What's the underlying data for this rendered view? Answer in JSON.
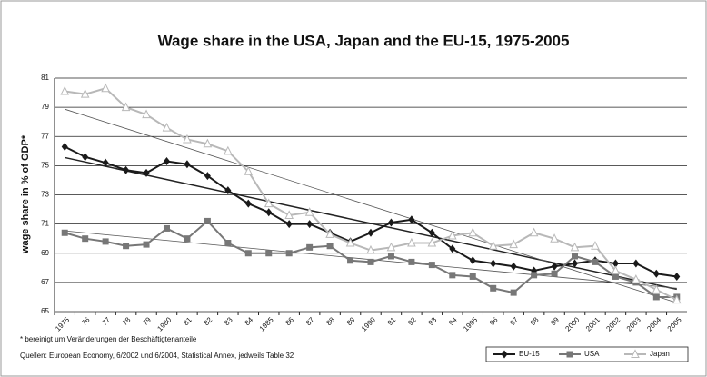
{
  "chart_data": {
    "type": "line",
    "title": "Wage share in the USA, Japan and the EU-15, 1975-2005",
    "y_label": "wage share in % of GDP*",
    "footnote": "* bereinigt um Veränderungen der Beschäftigtenanteile",
    "source": "Quellen: European Economy, 6/2002 und 6/2004, Statistical Annex, jedweils Table 32",
    "categories": [
      "1975",
      "76",
      "77",
      "78",
      "79",
      "1980",
      "81",
      "82",
      "83",
      "84",
      "1985",
      "86",
      "87",
      "88",
      "89",
      "1990",
      "91",
      "92",
      "93",
      "94",
      "1995",
      "96",
      "97",
      "98",
      "99",
      "2000",
      "2001",
      "2002",
      "2003",
      "2004",
      "2005"
    ],
    "series": [
      {
        "name": "EU-15",
        "color": "#1a1a1a",
        "marker": "diamond",
        "values": [
          76.3,
          75.6,
          75.2,
          74.7,
          74.5,
          75.3,
          75.1,
          74.3,
          73.3,
          72.4,
          71.8,
          71.0,
          71.0,
          70.4,
          69.8,
          70.4,
          71.1,
          71.3,
          70.4,
          69.3,
          68.5,
          68.3,
          68.1,
          67.8,
          68.1,
          68.3,
          68.5,
          68.3,
          68.3,
          67.6,
          67.4
        ]
      },
      {
        "name": "USA",
        "color": "#777777",
        "marker": "square",
        "values": [
          70.4,
          70.0,
          69.8,
          69.5,
          69.6,
          70.7,
          70.0,
          71.2,
          69.7,
          69.0,
          69.0,
          69.0,
          69.4,
          69.5,
          68.5,
          68.4,
          68.8,
          68.4,
          68.2,
          67.5,
          67.4,
          66.6,
          66.3,
          67.5,
          67.6,
          68.8,
          68.4,
          67.4,
          67.0,
          66.0,
          66.0
        ]
      },
      {
        "name": "Japan",
        "color": "#b8b8b8",
        "marker": "triangle",
        "values": [
          80.1,
          79.9,
          80.3,
          79.0,
          78.5,
          77.6,
          76.8,
          76.5,
          76.0,
          74.6,
          72.4,
          71.6,
          71.8,
          70.3,
          69.7,
          69.2,
          69.4,
          69.7,
          69.7,
          70.2,
          70.4,
          69.5,
          69.6,
          70.4,
          70.0,
          69.4,
          69.5,
          67.8,
          67.2,
          66.5,
          65.8
        ]
      }
    ],
    "ylim": [
      65,
      81
    ],
    "yticks": [
      65,
      67,
      69,
      71,
      73,
      75,
      77,
      79,
      81
    ],
    "grid": true,
    "trendlines": true,
    "legend": "bottom-right"
  }
}
